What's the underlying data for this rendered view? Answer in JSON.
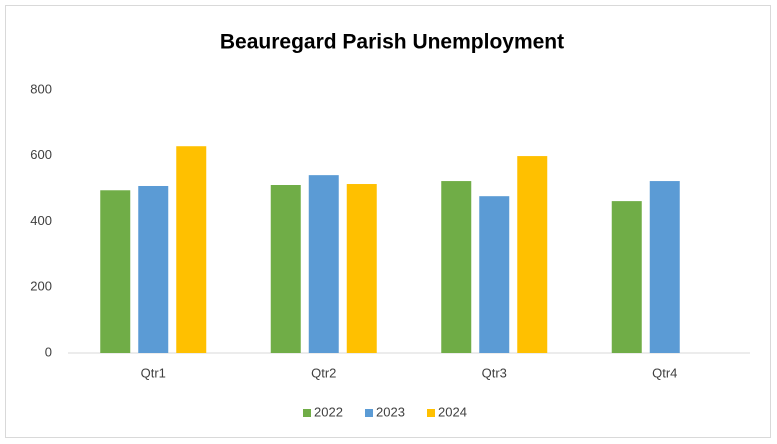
{
  "chart_data": {
    "type": "bar",
    "title": "Beauregard Parish Unemployment",
    "categories": [
      "Qtr1",
      "Qtr2",
      "Qtr3",
      "Qtr4"
    ],
    "series": [
      {
        "name": "2022",
        "color": "#70ad47",
        "values": [
          495,
          511,
          523,
          462
        ]
      },
      {
        "name": "2023",
        "color": "#5b9bd5",
        "values": [
          508,
          541,
          477,
          523
        ]
      },
      {
        "name": "2024",
        "color": "#ffc000",
        "values": [
          629,
          514,
          599,
          null
        ]
      }
    ],
    "ylim": [
      0,
      800
    ],
    "yticks": [
      0,
      200,
      400,
      600,
      800
    ],
    "grid": false,
    "legend": "bottom"
  }
}
